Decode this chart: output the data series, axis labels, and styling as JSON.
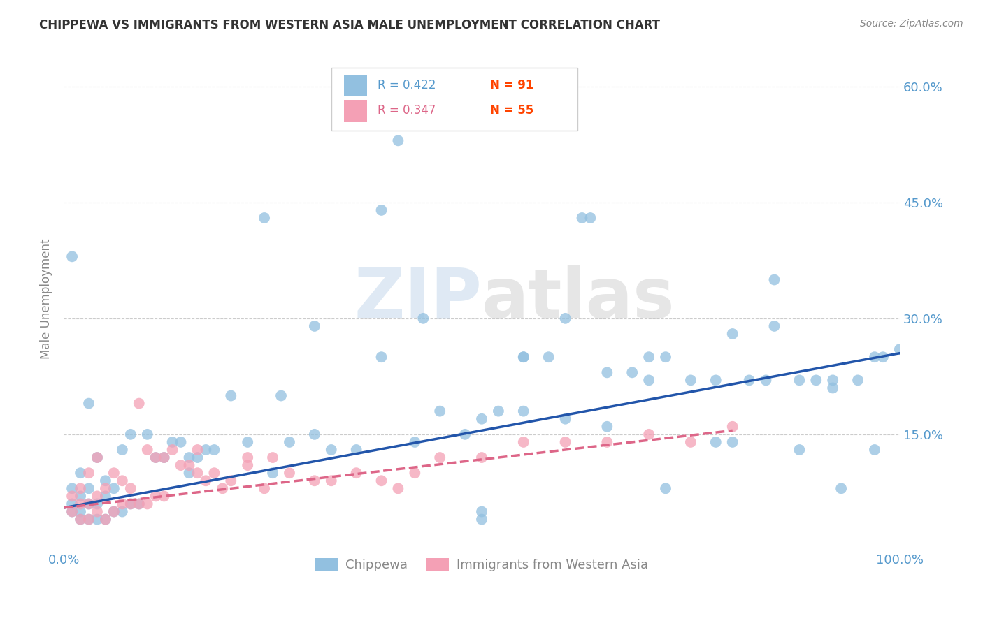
{
  "title": "CHIPPEWA VS IMMIGRANTS FROM WESTERN ASIA MALE UNEMPLOYMENT CORRELATION CHART",
  "source": "Source: ZipAtlas.com",
  "ylabel": "Male Unemployment",
  "x_min": 0.0,
  "x_max": 1.0,
  "y_min": 0.0,
  "y_max": 0.65,
  "x_ticks": [
    0.0,
    0.2,
    0.4,
    0.6,
    0.8,
    1.0
  ],
  "x_tick_labels": [
    "0.0%",
    "",
    "",
    "",
    "",
    "100.0%"
  ],
  "y_ticks": [
    0.0,
    0.15,
    0.3,
    0.45,
    0.6
  ],
  "y_tick_labels": [
    "",
    "15.0%",
    "30.0%",
    "45.0%",
    "60.0%"
  ],
  "watermark_zip": "ZIP",
  "watermark_atlas": "atlas",
  "legend_r1": "R = 0.422",
  "legend_n1": "N = 91",
  "legend_r2": "R = 0.347",
  "legend_n2": "N = 55",
  "blue_color": "#92c0e0",
  "pink_color": "#f4a0b5",
  "blue_line_color": "#2255aa",
  "pink_line_color": "#dd6688",
  "grid_color": "#cccccc",
  "title_color": "#333333",
  "tick_color": "#5599cc",
  "label_color": "#888888",
  "legend_r_color_blue": "#5599cc",
  "legend_n_color": "#ff4400",
  "legend_r_color_pink": "#dd6688",
  "background_color": "#ffffff",
  "figure_width": 14.06,
  "figure_height": 8.92,
  "blue_scatter_x": [
    0.01,
    0.01,
    0.01,
    0.02,
    0.02,
    0.02,
    0.02,
    0.03,
    0.03,
    0.03,
    0.03,
    0.04,
    0.04,
    0.04,
    0.05,
    0.05,
    0.05,
    0.06,
    0.06,
    0.07,
    0.07,
    0.08,
    0.08,
    0.09,
    0.1,
    0.11,
    0.12,
    0.13,
    0.14,
    0.15,
    0.16,
    0.17,
    0.18,
    0.2,
    0.22,
    0.24,
    0.26,
    0.27,
    0.3,
    0.32,
    0.35,
    0.38,
    0.4,
    0.43,
    0.45,
    0.48,
    0.5,
    0.5,
    0.52,
    0.55,
    0.55,
    0.58,
    0.6,
    0.62,
    0.63,
    0.65,
    0.68,
    0.7,
    0.72,
    0.75,
    0.78,
    0.8,
    0.82,
    0.84,
    0.85,
    0.88,
    0.9,
    0.92,
    0.95,
    0.97,
    1.0,
    0.01,
    0.15,
    0.25,
    0.38,
    0.5,
    0.65,
    0.72,
    0.8,
    0.88,
    0.92,
    0.3,
    0.42,
    0.6,
    0.78,
    0.85,
    0.93,
    0.97,
    0.55,
    0.7,
    0.98
  ],
  "blue_scatter_y": [
    0.05,
    0.06,
    0.08,
    0.04,
    0.05,
    0.07,
    0.1,
    0.04,
    0.06,
    0.08,
    0.19,
    0.04,
    0.06,
    0.12,
    0.04,
    0.07,
    0.09,
    0.05,
    0.08,
    0.05,
    0.13,
    0.06,
    0.15,
    0.06,
    0.15,
    0.12,
    0.12,
    0.14,
    0.14,
    0.12,
    0.12,
    0.13,
    0.13,
    0.2,
    0.14,
    0.43,
    0.2,
    0.14,
    0.15,
    0.13,
    0.13,
    0.44,
    0.53,
    0.3,
    0.18,
    0.15,
    0.17,
    0.05,
    0.18,
    0.18,
    0.25,
    0.25,
    0.17,
    0.43,
    0.43,
    0.23,
    0.23,
    0.22,
    0.08,
    0.22,
    0.22,
    0.28,
    0.22,
    0.22,
    0.35,
    0.22,
    0.22,
    0.21,
    0.22,
    0.13,
    0.26,
    0.38,
    0.1,
    0.1,
    0.25,
    0.04,
    0.16,
    0.25,
    0.14,
    0.13,
    0.22,
    0.29,
    0.14,
    0.3,
    0.14,
    0.29,
    0.08,
    0.25,
    0.25,
    0.25,
    0.25
  ],
  "pink_scatter_x": [
    0.01,
    0.01,
    0.02,
    0.02,
    0.02,
    0.03,
    0.03,
    0.03,
    0.04,
    0.04,
    0.04,
    0.05,
    0.05,
    0.06,
    0.06,
    0.07,
    0.07,
    0.08,
    0.08,
    0.09,
    0.09,
    0.1,
    0.1,
    0.11,
    0.11,
    0.12,
    0.12,
    0.13,
    0.14,
    0.15,
    0.16,
    0.17,
    0.18,
    0.19,
    0.2,
    0.22,
    0.24,
    0.25,
    0.27,
    0.3,
    0.32,
    0.35,
    0.38,
    0.4,
    0.42,
    0.45,
    0.5,
    0.55,
    0.6,
    0.65,
    0.7,
    0.75,
    0.8,
    0.16,
    0.22
  ],
  "pink_scatter_y": [
    0.05,
    0.07,
    0.04,
    0.06,
    0.08,
    0.04,
    0.06,
    0.1,
    0.05,
    0.07,
    0.12,
    0.04,
    0.08,
    0.05,
    0.1,
    0.06,
    0.09,
    0.06,
    0.08,
    0.06,
    0.19,
    0.06,
    0.13,
    0.07,
    0.12,
    0.07,
    0.12,
    0.13,
    0.11,
    0.11,
    0.1,
    0.09,
    0.1,
    0.08,
    0.09,
    0.12,
    0.08,
    0.12,
    0.1,
    0.09,
    0.09,
    0.1,
    0.09,
    0.08,
    0.1,
    0.12,
    0.12,
    0.14,
    0.14,
    0.14,
    0.15,
    0.14,
    0.16,
    0.13,
    0.11
  ],
  "blue_trend_y_start": 0.055,
  "blue_trend_y_end": 0.255,
  "pink_trend_x_end": 0.8,
  "pink_trend_y_start": 0.055,
  "pink_trend_y_end": 0.155
}
